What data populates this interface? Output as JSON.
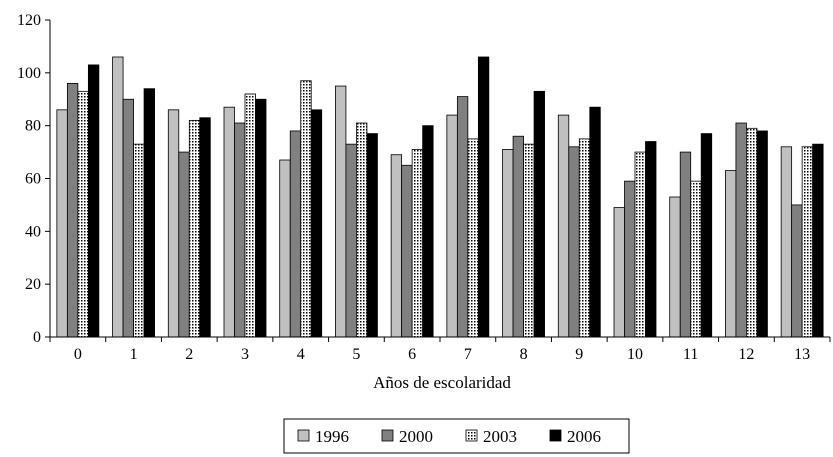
{
  "chart_data": {
    "type": "bar",
    "title": "",
    "xlabel": "Años de escolaridad",
    "ylabel": "",
    "ylim": [
      0,
      120
    ],
    "yticks": [
      0,
      20,
      40,
      60,
      80,
      100,
      120
    ],
    "grid": false,
    "legend_position": "bottom",
    "categories": [
      "0",
      "1",
      "2",
      "3",
      "4",
      "5",
      "6",
      "7",
      "8",
      "9",
      "10",
      "11",
      "12",
      "13"
    ],
    "series": [
      {
        "name": "1996",
        "color": "#c0c0c0",
        "pattern": "solid-light",
        "values": [
          86,
          106,
          86,
          87,
          67,
          95,
          69,
          84,
          71,
          84,
          49,
          53,
          63,
          72
        ]
      },
      {
        "name": "2000",
        "color": "#808080",
        "pattern": "solid-dark",
        "values": [
          96,
          90,
          70,
          81,
          78,
          73,
          65,
          91,
          76,
          72,
          59,
          70,
          81,
          50
        ]
      },
      {
        "name": "2003",
        "color": "#ffffff",
        "pattern": "dotted",
        "values": [
          93,
          73,
          82,
          92,
          97,
          81,
          71,
          75,
          73,
          75,
          70,
          59,
          79,
          72
        ]
      },
      {
        "name": "2006",
        "color": "#000000",
        "pattern": "solid-black",
        "values": [
          103,
          94,
          83,
          90,
          86,
          77,
          80,
          106,
          93,
          87,
          74,
          77,
          78,
          73
        ]
      }
    ]
  }
}
